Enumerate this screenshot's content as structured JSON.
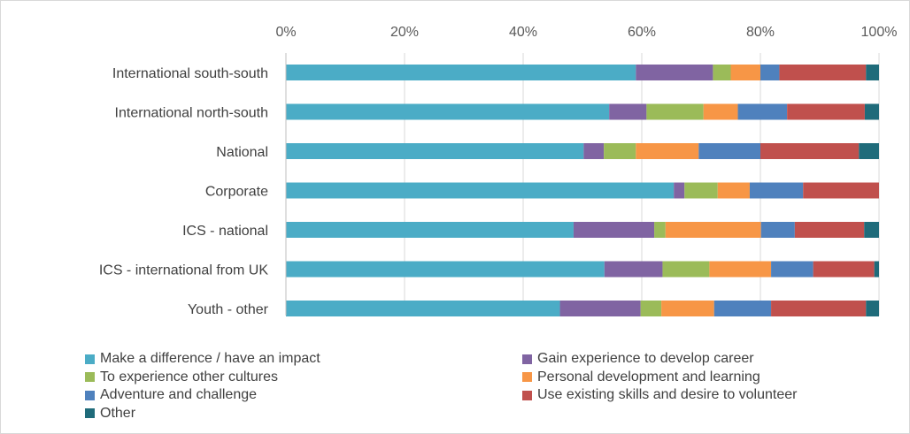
{
  "chart_data": {
    "type": "bar",
    "orientation": "horizontal",
    "stacked": true,
    "percent": true,
    "title": "",
    "xlabel": "",
    "ylabel": "",
    "xlim": [
      0,
      100
    ],
    "x_ticks": [
      "0%",
      "20%",
      "40%",
      "60%",
      "80%",
      "100%"
    ],
    "grid": true,
    "legend_position": "bottom",
    "categories": [
      "International south-south",
      "International north-south",
      "National",
      "Corporate",
      "ICS - national",
      "ICS - international from UK",
      "Youth - other"
    ],
    "series": [
      {
        "name": "Make a difference / have an impact",
        "color": "#4bacc6",
        "values": [
          59,
          54.5,
          50.2,
          65.4,
          48.5,
          53.7,
          46.2
        ]
      },
      {
        "name": "Gain experience to develop career",
        "color": "#8064a2",
        "values": [
          13,
          6.3,
          3.4,
          1.8,
          13.6,
          9.8,
          13.6
        ]
      },
      {
        "name": "To experience other cultures",
        "color": "#9bbb59",
        "values": [
          3,
          9.6,
          5.4,
          5.6,
          1.9,
          7.9,
          3.5
        ]
      },
      {
        "name": "Personal development and learning",
        "color": "#f79646",
        "values": [
          5,
          5.8,
          10.6,
          5.4,
          16.1,
          10.4,
          8.9
        ]
      },
      {
        "name": "Adventure and challenge",
        "color": "#4f81bd",
        "values": [
          3.2,
          8.3,
          10.4,
          9,
          5.7,
          7.1,
          9.6
        ]
      },
      {
        "name": "Use existing skills and desire to volunteer",
        "color": "#c0504d",
        "values": [
          14.6,
          13.1,
          16.6,
          12.8,
          11.7,
          10.3,
          16
        ]
      },
      {
        "name": "Other",
        "color": "#1f6b7a",
        "values": [
          2.2,
          2.4,
          3.4,
          0,
          2.5,
          0.8,
          2.2
        ]
      }
    ]
  }
}
